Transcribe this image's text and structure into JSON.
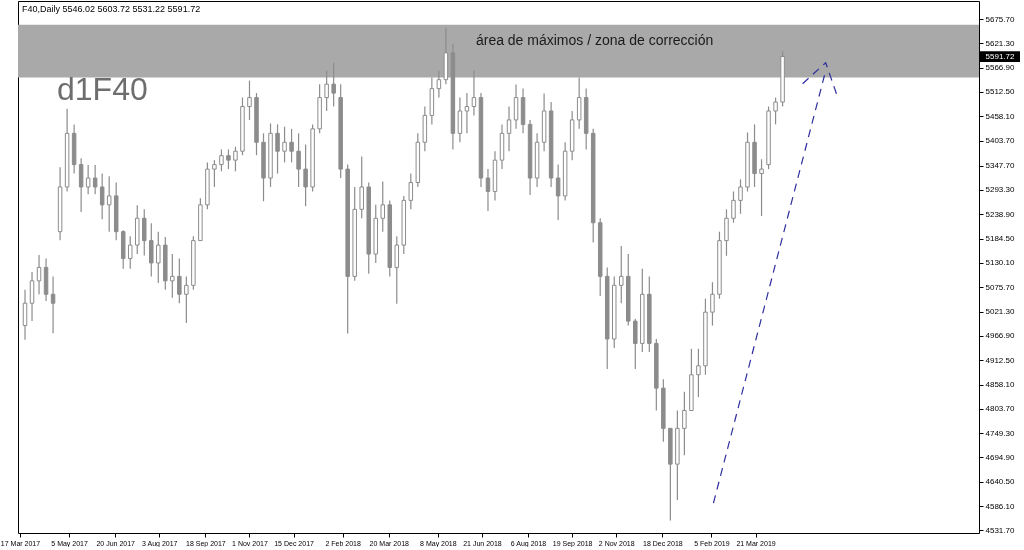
{
  "chart_data": {
    "type": "candlestick",
    "title": "F40,Daily 5546.02 5603.72 5531.22 5591.72",
    "color": "#8c8c8c",
    "x": [
      "2017-03-22",
      "2017-03-29",
      "2017-04-05",
      "2017-04-12",
      "2017-04-19",
      "2017-04-26",
      "2017-05-03",
      "2017-05-10",
      "2017-05-17",
      "2017-05-24",
      "2017-05-31",
      "2017-06-07",
      "2017-06-14",
      "2017-06-21",
      "2017-06-28",
      "2017-07-05",
      "2017-07-12",
      "2017-07-19",
      "2017-07-26",
      "2017-08-02",
      "2017-08-09",
      "2017-08-16",
      "2017-08-23",
      "2017-08-30",
      "2017-09-06",
      "2017-09-13",
      "2017-09-20",
      "2017-09-27",
      "2017-10-04",
      "2017-10-11",
      "2017-10-18",
      "2017-10-25",
      "2017-11-01",
      "2017-11-08",
      "2017-11-15",
      "2017-11-22",
      "2017-11-29",
      "2017-12-06",
      "2017-12-13",
      "2017-12-20",
      "2017-12-27",
      "2018-01-03",
      "2018-01-10",
      "2018-01-17",
      "2018-01-24",
      "2018-01-31",
      "2018-02-07",
      "2018-02-14",
      "2018-02-21",
      "2018-02-28",
      "2018-03-07",
      "2018-03-14",
      "2018-03-21",
      "2018-03-28",
      "2018-04-04",
      "2018-04-11",
      "2018-04-18",
      "2018-04-25",
      "2018-05-02",
      "2018-05-09",
      "2018-05-16",
      "2018-05-23",
      "2018-05-30",
      "2018-06-06",
      "2018-06-13",
      "2018-06-20",
      "2018-06-27",
      "2018-07-04",
      "2018-07-11",
      "2018-07-18",
      "2018-07-25",
      "2018-08-01",
      "2018-08-08",
      "2018-08-15",
      "2018-08-22",
      "2018-08-29",
      "2018-09-05",
      "2018-09-12",
      "2018-09-19",
      "2018-09-26",
      "2018-10-03",
      "2018-10-10",
      "2018-10-17",
      "2018-10-24",
      "2018-10-31",
      "2018-11-07",
      "2018-11-14",
      "2018-11-21",
      "2018-11-28",
      "2018-12-05",
      "2018-12-12",
      "2018-12-19",
      "2018-12-26",
      "2019-01-02",
      "2019-01-09",
      "2019-01-16",
      "2019-01-23",
      "2019-01-30",
      "2019-02-06",
      "2019-02-13",
      "2019-02-20",
      "2019-02-27",
      "2019-03-06",
      "2019-03-13",
      "2019-03-20",
      "2019-03-27",
      "2019-04-03",
      "2019-04-10",
      "2019-04-17"
    ],
    "ohlc": [
      [
        4990,
        5070,
        4958,
        5040
      ],
      [
        5040,
        5110,
        5000,
        5090
      ],
      [
        5090,
        5148,
        5060,
        5120
      ],
      [
        5120,
        5140,
        5045,
        5060
      ],
      [
        5060,
        5100,
        4973,
        5040
      ],
      [
        5200,
        5344,
        5181,
        5300
      ],
      [
        5300,
        5475,
        5290,
        5420
      ],
      [
        5420,
        5440,
        5330,
        5350
      ],
      [
        5350,
        5364,
        5244,
        5300
      ],
      [
        5300,
        5349,
        5284,
        5320
      ],
      [
        5320,
        5349,
        5284,
        5300
      ],
      [
        5300,
        5330,
        5228,
        5260
      ],
      [
        5260,
        5324,
        5200,
        5280
      ],
      [
        5280,
        5310,
        5181,
        5200
      ],
      [
        5200,
        5203,
        5117,
        5140
      ],
      [
        5140,
        5190,
        5117,
        5170
      ],
      [
        5170,
        5259,
        5150,
        5230
      ],
      [
        5230,
        5250,
        5147,
        5180
      ],
      [
        5180,
        5219,
        5100,
        5130
      ],
      [
        5130,
        5200,
        5085,
        5170
      ],
      [
        5170,
        5188,
        5070,
        5090
      ],
      [
        5090,
        5150,
        5052,
        5100
      ],
      [
        5100,
        5140,
        5040,
        5060
      ],
      [
        5060,
        5100,
        4996,
        5080
      ],
      [
        5080,
        5190,
        5070,
        5180
      ],
      [
        5180,
        5275,
        5180,
        5260
      ],
      [
        5260,
        5355,
        5250,
        5340
      ],
      [
        5340,
        5360,
        5300,
        5350
      ],
      [
        5350,
        5384,
        5335,
        5370
      ],
      [
        5370,
        5384,
        5340,
        5360
      ],
      [
        5360,
        5390,
        5335,
        5380
      ],
      [
        5380,
        5500,
        5371,
        5480
      ],
      [
        5480,
        5538,
        5450,
        5500
      ],
      [
        5500,
        5510,
        5371,
        5400
      ],
      [
        5400,
        5420,
        5268,
        5320
      ],
      [
        5320,
        5442,
        5300,
        5420
      ],
      [
        5420,
        5440,
        5330,
        5380
      ],
      [
        5380,
        5435,
        5355,
        5400
      ],
      [
        5400,
        5430,
        5355,
        5380
      ],
      [
        5380,
        5420,
        5300,
        5340
      ],
      [
        5340,
        5395,
        5257,
        5300
      ],
      [
        5300,
        5440,
        5290,
        5430
      ],
      [
        5430,
        5530,
        5420,
        5500
      ],
      [
        5500,
        5560,
        5470,
        5530
      ],
      [
        5530,
        5578,
        5480,
        5510
      ],
      [
        5500,
        5530,
        5320,
        5340
      ],
      [
        5340,
        5350,
        4972,
        5100
      ],
      [
        5100,
        5300,
        5090,
        5250
      ],
      [
        5250,
        5368,
        5230,
        5300
      ],
      [
        5300,
        5310,
        5106,
        5150
      ],
      [
        5150,
        5260,
        5130,
        5230
      ],
      [
        5230,
        5312,
        5200,
        5260
      ],
      [
        5260,
        5270,
        5100,
        5120
      ],
      [
        5120,
        5190,
        5039,
        5170
      ],
      [
        5170,
        5280,
        5150,
        5270
      ],
      [
        5270,
        5330,
        5250,
        5310
      ],
      [
        5310,
        5420,
        5300,
        5400
      ],
      [
        5400,
        5480,
        5380,
        5460
      ],
      [
        5460,
        5545,
        5440,
        5520
      ],
      [
        5520,
        5560,
        5500,
        5540
      ],
      [
        5540,
        5656,
        5530,
        5600
      ],
      [
        5600,
        5620,
        5384,
        5420
      ],
      [
        5420,
        5500,
        5400,
        5470
      ],
      [
        5470,
        5510,
        5420,
        5480
      ],
      [
        5480,
        5560,
        5460,
        5500
      ],
      [
        5500,
        5510,
        5300,
        5320
      ],
      [
        5320,
        5340,
        5246,
        5290
      ],
      [
        5290,
        5380,
        5270,
        5360
      ],
      [
        5360,
        5440,
        5340,
        5420
      ],
      [
        5420,
        5480,
        5380,
        5450
      ],
      [
        5450,
        5529,
        5430,
        5500
      ],
      [
        5500,
        5520,
        5420,
        5440
      ],
      [
        5440,
        5450,
        5282,
        5320
      ],
      [
        5320,
        5420,
        5300,
        5400
      ],
      [
        5400,
        5509,
        5380,
        5470
      ],
      [
        5470,
        5490,
        5300,
        5320
      ],
      [
        5320,
        5350,
        5226,
        5280
      ],
      [
        5280,
        5400,
        5270,
        5380
      ],
      [
        5380,
        5470,
        5360,
        5450
      ],
      [
        5450,
        5545,
        5430,
        5500
      ],
      [
        5500,
        5520,
        5384,
        5420
      ],
      [
        5420,
        5430,
        5176,
        5220
      ],
      [
        5220,
        5230,
        5056,
        5100
      ],
      [
        5100,
        5120,
        4893,
        4960
      ],
      [
        4960,
        5100,
        4940,
        5080
      ],
      [
        5080,
        5168,
        5040,
        5100
      ],
      [
        5100,
        5150,
        4990,
        5000
      ],
      [
        5000,
        5005,
        4893,
        4950
      ],
      [
        4950,
        5117,
        4931,
        5060
      ],
      [
        5060,
        5100,
        4931,
        4950
      ],
      [
        4950,
        4960,
        4800,
        4850
      ],
      [
        4850,
        4870,
        4730,
        4760
      ],
      [
        4760,
        4760,
        4554,
        4680
      ],
      [
        4680,
        4800,
        4600,
        4760
      ],
      [
        4760,
        4842,
        4700,
        4800
      ],
      [
        4800,
        4938,
        4800,
        4880
      ],
      [
        4880,
        4938,
        4830,
        4900
      ],
      [
        4900,
        5050,
        4880,
        5020
      ],
      [
        5020,
        5087,
        4990,
        5060
      ],
      [
        5060,
        5200,
        5050,
        5180
      ],
      [
        5180,
        5250,
        5146,
        5230
      ],
      [
        5230,
        5290,
        5220,
        5270
      ],
      [
        5270,
        5317,
        5240,
        5300
      ],
      [
        5300,
        5422,
        5290,
        5400
      ],
      [
        5400,
        5440,
        5300,
        5330
      ],
      [
        5330,
        5362,
        5235,
        5340
      ],
      [
        5350,
        5480,
        5340,
        5470
      ],
      [
        5470,
        5500,
        5440,
        5490
      ],
      [
        5490,
        5603.72,
        5480,
        5591.72
      ]
    ],
    "series": [
      {
        "type": "line",
        "x": [
          "2019-02-07",
          "2019-05-30",
          null,
          "2019-05-07",
          "2019-05-30",
          "2019-06-10"
        ],
        "values": [
          4593,
          5560,
          null,
          5531,
          5578,
          5507
        ],
        "color": "#2e2e9e",
        "line_style": "dashed"
      }
    ],
    "xlim": [
      "2017-03-15",
      "2019-10-30"
    ],
    "xticks": [
      {
        "value": "2017-03-17",
        "label": "17 Mar 2017"
      },
      {
        "value": "2017-05-05",
        "label": "5 May 2017"
      },
      {
        "value": "2017-06-20",
        "label": "20 Jun 2017"
      },
      {
        "value": "2017-08-03",
        "label": "3 Aug 2017"
      },
      {
        "value": "2017-09-18",
        "label": "18 Sep 2017"
      },
      {
        "value": "2017-11-01",
        "label": "1 Nov 2017"
      },
      {
        "value": "2017-12-15",
        "label": "15 Dec 2017"
      },
      {
        "value": "2018-02-02",
        "label": "2 Feb 2018"
      },
      {
        "value": "2018-03-20",
        "label": "20 Mar 2018"
      },
      {
        "value": "2018-05-08",
        "label": "8 May 2018"
      },
      {
        "value": "2018-06-21",
        "label": "21 Jun 2018"
      },
      {
        "value": "2018-08-06",
        "label": "6 Aug 2018"
      },
      {
        "value": "2018-09-19",
        "label": "19 Sep 2018"
      },
      {
        "value": "2018-11-02",
        "label": "2 Nov 2018"
      },
      {
        "value": "2018-12-18",
        "label": "18 Dec 2018"
      },
      {
        "value": "2019-02-05",
        "label": "5 Feb 2019"
      },
      {
        "value": "2019-03-21",
        "label": "21 Mar 2019"
      }
    ],
    "ylim": [
      4526,
      5716
    ],
    "yticks": [
      {
        "value": 5675.7,
        "label": "5675.70"
      },
      {
        "value": 5621.3,
        "label": "5621.30"
      },
      {
        "value": 5566.9,
        "label": "5566.90"
      },
      {
        "value": 5512.5,
        "label": "5512.50"
      },
      {
        "value": 5458.1,
        "label": "5458.10"
      },
      {
        "value": 5403.7,
        "label": "5403.70"
      },
      {
        "value": 5347.7,
        "label": "5347.70"
      },
      {
        "value": 5293.3,
        "label": "5293.30"
      },
      {
        "value": 5238.9,
        "label": "5238.90"
      },
      {
        "value": 5184.5,
        "label": "5184.50"
      },
      {
        "value": 5130.1,
        "label": "5130.10"
      },
      {
        "value": 5075.7,
        "label": "5075.70"
      },
      {
        "value": 5021.3,
        "label": "5021.30"
      },
      {
        "value": 4966.9,
        "label": "4966.90"
      },
      {
        "value": 4912.5,
        "label": "4912.50"
      },
      {
        "value": 4858.1,
        "label": "4858.10"
      },
      {
        "value": 4803.7,
        "label": "4803.70"
      },
      {
        "value": 4749.3,
        "label": "4749.30"
      },
      {
        "value": 4694.9,
        "label": "4694.90"
      },
      {
        "value": 4640.5,
        "label": "4640.50"
      },
      {
        "value": 4586.1,
        "label": "4586.10"
      },
      {
        "value": 4531.7,
        "label": "4531.70"
      }
    ],
    "bands": [
      {
        "axis": "y",
        "from": 5545,
        "to": 5663,
        "label": "área de máximos / zona de corrección",
        "color": "#a9a9a9"
      }
    ],
    "annotations": [
      "d1F40",
      "5591.72"
    ]
  }
}
